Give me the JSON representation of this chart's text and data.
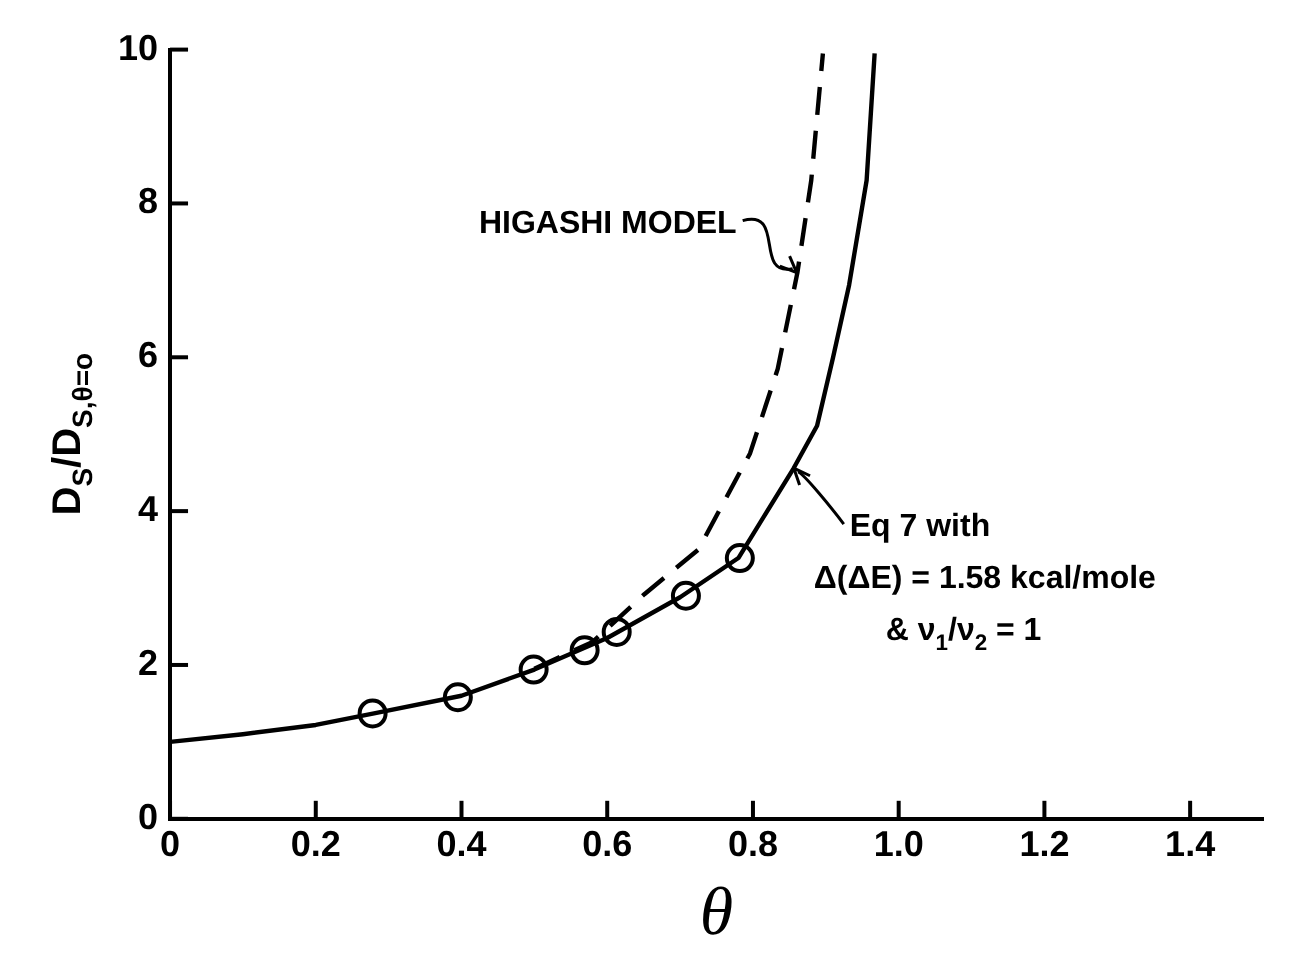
{
  "chart_data": {
    "type": "line",
    "xlabel": "θ",
    "ylabel": "D$_{S}$/D$_{S,θ=o}$",
    "xlim": [
      0,
      1.5
    ],
    "xticks": [
      0,
      0.2,
      0.4,
      0.6,
      0.8,
      {
        "value": 1.0,
        "label": "1.0"
      },
      1.2,
      1.4
    ],
    "ylim": [
      0,
      10
    ],
    "yticks": [
      0,
      2,
      4,
      6,
      8,
      10
    ],
    "grid": false,
    "legend": false,
    "series": [
      {
        "color": "#000000",
        "marker": "none",
        "line_style": "solid",
        "x": [
          0,
          0.1,
          0.2,
          0.28,
          0.4,
          0.5,
          0.6,
          0.7,
          0.78,
          0.856,
          0.888,
          0.91,
          0.932,
          0.956,
          0.967
        ],
        "values": [
          1.0,
          1.1,
          1.22,
          1.37,
          1.6,
          1.94,
          2.35,
          2.88,
          3.39,
          4.56,
          5.11,
          6.0,
          6.94,
          8.3,
          9.95
        ]
      },
      {
        "color": "#000000",
        "marker": "none",
        "line_style": "dashed",
        "x": [
          0.5,
          0.58,
          0.651,
          0.725,
          0.796,
          0.834,
          0.861,
          0.88,
          0.896
        ],
        "values": [
          1.95,
          2.3,
          2.92,
          3.5,
          4.75,
          5.85,
          7.1,
          8.3,
          9.95
        ]
      },
      {
        "type": "scatter",
        "color": "#000000",
        "marker": "circle",
        "x": [
          0.278,
          0.395,
          0.499,
          0.569,
          0.613,
          0.708,
          0.782
        ],
        "values": [
          1.37,
          1.58,
          1.94,
          2.19,
          2.43,
          2.9,
          3.39
        ]
      }
    ],
    "annotations": [
      {
        "text": "HIGASHI MODEL",
        "x": 0.86,
        "y": 7.1
      },
      {
        "text": "Eq 7 with\nΔ(ΔE) = 1.58 kcal/mole\n& ν$_{1}$/ν$_{2}$ = 1",
        "x": 0.856,
        "y": 4.56
      }
    ]
  }
}
